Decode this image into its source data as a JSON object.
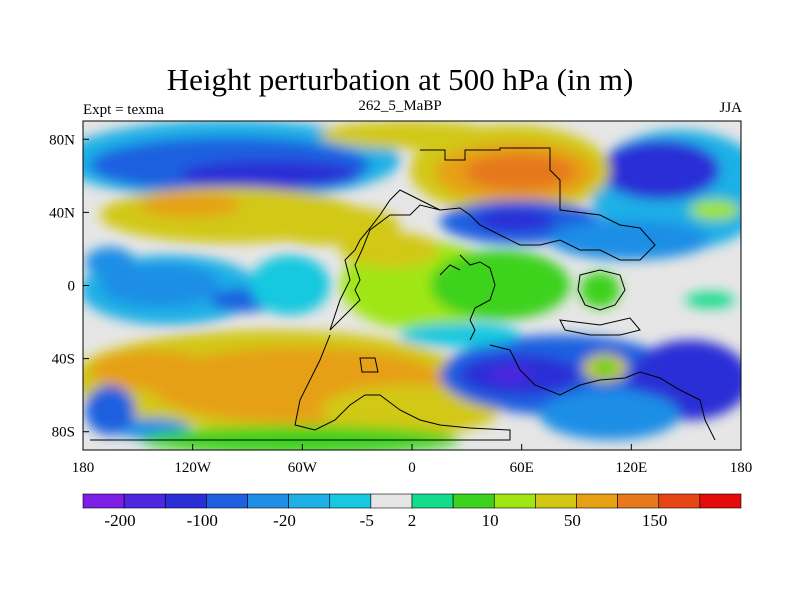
{
  "chart_data": {
    "type": "heatmap",
    "title": "Height perturbation at 500 hPa (in m)",
    "left_string": "Expt = texma",
    "center_string": "262_5_MaBP",
    "right_string": "JJA",
    "x_ticks": [
      "180",
      "120W",
      "60W",
      "0",
      "60E",
      "120E",
      "180"
    ],
    "y_ticks": [
      "80N",
      "40N",
      "0",
      "40S",
      "80S"
    ],
    "colorbar": {
      "labels": [
        "-200",
        "-100",
        "-20",
        "-5",
        "2",
        "10",
        "50",
        "150"
      ],
      "colors": [
        "#7d1ee6",
        "#4f26e0",
        "#2b2ed6",
        "#1f60e0",
        "#1f8ee6",
        "#1fb0e6",
        "#16c8e0",
        "#e6e6e6",
        "#14dc8c",
        "#3cd21e",
        "#a0e614",
        "#d2c814",
        "#e6a014",
        "#e6781e",
        "#e64614",
        "#e60a0a"
      ]
    },
    "x_range": [
      -180,
      180
    ],
    "y_range": [
      -90,
      90
    ]
  }
}
